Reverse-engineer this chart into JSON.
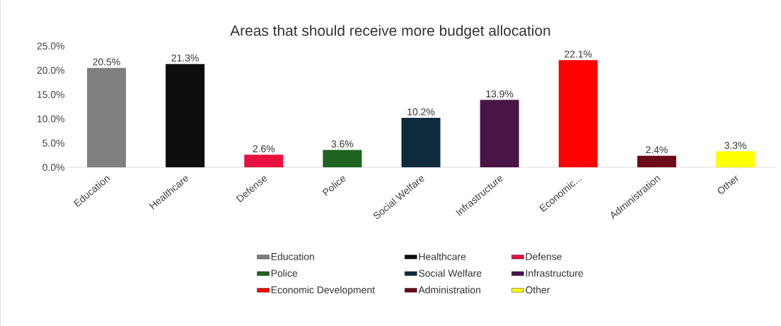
{
  "chart_data": {
    "type": "bar",
    "title": "Areas that should receive more budget allocation",
    "categories": [
      "Education",
      "Healthcare",
      "Defense",
      "Police",
      "Social Welfare",
      "Infrastructure",
      "Economic...",
      "Administration",
      "Other"
    ],
    "series": [
      {
        "name": "Education",
        "color": "#7f7f7f",
        "values": [
          20.5,
          null,
          null,
          null,
          null,
          null,
          null,
          null,
          null
        ],
        "value_labels": [
          "20.5%",
          null,
          null,
          null,
          null,
          null,
          null,
          null,
          null
        ]
      },
      {
        "name": "Healthcare",
        "color": "#0d0d0d",
        "values": [
          null,
          21.3,
          null,
          null,
          null,
          null,
          null,
          null,
          null
        ],
        "value_labels": [
          null,
          "21.3%",
          null,
          null,
          null,
          null,
          null,
          null,
          null
        ]
      },
      {
        "name": "Defense",
        "color": "#e8103c",
        "values": [
          null,
          null,
          2.6,
          null,
          null,
          null,
          null,
          null,
          null
        ],
        "value_labels": [
          null,
          null,
          "2.6%",
          null,
          null,
          null,
          null,
          null,
          null
        ]
      },
      {
        "name": "Police",
        "color": "#1e6320",
        "values": [
          null,
          null,
          null,
          3.6,
          null,
          null,
          null,
          null,
          null
        ],
        "value_labels": [
          null,
          null,
          null,
          "3.6%",
          null,
          null,
          null,
          null,
          null
        ]
      },
      {
        "name": "Social Welfare",
        "color": "#0f2a3d",
        "values": [
          null,
          null,
          null,
          null,
          10.2,
          null,
          null,
          null,
          null
        ],
        "value_labels": [
          null,
          null,
          null,
          null,
          "10.2%",
          null,
          null,
          null,
          null
        ]
      },
      {
        "name": "Infrastructure",
        "color": "#4a1446",
        "values": [
          null,
          null,
          null,
          null,
          null,
          13.9,
          null,
          null,
          null
        ],
        "value_labels": [
          null,
          null,
          null,
          null,
          null,
          "13.9%",
          null,
          null,
          null
        ]
      },
      {
        "name": "Economic Development",
        "color": "#ff0000",
        "values": [
          null,
          null,
          null,
          null,
          null,
          null,
          22.1,
          null,
          null
        ],
        "value_labels": [
          null,
          null,
          null,
          null,
          null,
          null,
          "22.1%",
          null,
          null
        ]
      },
      {
        "name": "Administration",
        "color": "#6b0a16",
        "values": [
          null,
          null,
          null,
          null,
          null,
          null,
          null,
          2.4,
          null
        ],
        "value_labels": [
          null,
          null,
          null,
          null,
          null,
          null,
          null,
          "2.4%",
          null
        ]
      },
      {
        "name": "Other",
        "color": "#ffff00",
        "values": [
          null,
          null,
          null,
          null,
          null,
          null,
          null,
          null,
          3.3
        ],
        "value_labels": [
          null,
          null,
          null,
          null,
          null,
          null,
          null,
          null,
          "3.3%"
        ]
      }
    ],
    "ylim": [
      0,
      25
    ],
    "yticks": [
      {
        "value": 0,
        "label": "0.0%"
      },
      {
        "value": 5,
        "label": "5.0%"
      },
      {
        "value": 10,
        "label": "10.0%"
      },
      {
        "value": 15,
        "label": "15.0%"
      },
      {
        "value": 20,
        "label": "20.0%"
      },
      {
        "value": 25,
        "label": "25.0%"
      }
    ],
    "legend": "bottom",
    "grid": false
  }
}
